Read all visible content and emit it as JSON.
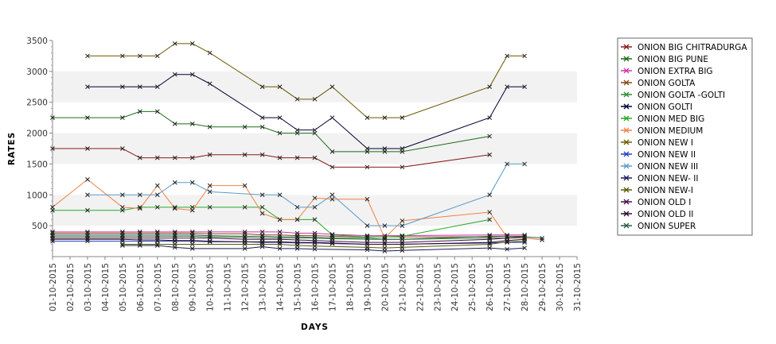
{
  "chart_data": {
    "type": "line",
    "xlabel": "DAYS",
    "ylabel": "RATES",
    "ylim": [
      0,
      3500
    ],
    "yticks": [
      500,
      1000,
      1500,
      2000,
      2500,
      3000,
      3500
    ],
    "grid": "alternating horizontal bands",
    "legend_position": "right",
    "categories": [
      "01-10-2015",
      "02-10-2015",
      "03-10-2015",
      "04-10-2015",
      "05-10-2015",
      "06-10-2015",
      "07-10-2015",
      "08-10-2015",
      "09-10-2015",
      "10-10-2015",
      "11-10-2015",
      "12-10-2015",
      "13-10-2015",
      "14-10-2015",
      "15-10-2015",
      "16-10-2015",
      "17-10-2015",
      "18-10-2015",
      "19-10-2015",
      "20-10-2015",
      "21-10-2015",
      "22-10-2015",
      "23-10-2015",
      "24-10-2015",
      "25-10-2015",
      "26-10-2015",
      "27-10-2015",
      "28-10-2015",
      "29-10-2015",
      "30-10-2015",
      "31-10-2015"
    ],
    "series": [
      {
        "name": "ONION BIG CHITRADURGA",
        "color": "#8b1a1a",
        "values": [
          1750,
          null,
          1750,
          null,
          1750,
          1600,
          1600,
          1600,
          1600,
          1650,
          null,
          1650,
          1650,
          1600,
          1600,
          1600,
          1450,
          null,
          1450,
          null,
          1450,
          null,
          null,
          null,
          null,
          1650,
          null,
          null,
          null,
          null,
          null
        ]
      },
      {
        "name": "ONION BIG PUNE",
        "color": "#1a6b1a",
        "values": [
          2250,
          null,
          2250,
          null,
          2250,
          2350,
          2350,
          2150,
          2150,
          2100,
          null,
          2100,
          2100,
          2000,
          2000,
          2000,
          1700,
          null,
          1700,
          1700,
          1700,
          null,
          null,
          null,
          null,
          1950,
          null,
          null,
          null,
          null,
          null
        ]
      },
      {
        "name": "ONION EXTRA BIG",
        "color": "#cc33aa",
        "values": [
          400,
          null,
          400,
          null,
          400,
          400,
          400,
          400,
          400,
          400,
          null,
          400,
          400,
          400,
          380,
          380,
          360,
          null,
          340,
          340,
          340,
          null,
          null,
          null,
          null,
          350,
          350,
          350,
          null,
          null,
          null
        ]
      },
      {
        "name": "ONION GOLTA",
        "color": "#8b4513",
        "values": [
          380,
          null,
          380,
          null,
          380,
          380,
          380,
          380,
          380,
          370,
          null,
          370,
          350,
          350,
          340,
          340,
          330,
          null,
          320,
          320,
          320,
          null,
          null,
          null,
          null,
          320,
          330,
          330,
          null,
          null,
          null
        ]
      },
      {
        "name": "ONION GOLTA -GOLTI",
        "color": "#2e8b2e",
        "values": [
          330,
          null,
          330,
          null,
          330,
          330,
          330,
          330,
          330,
          320,
          null,
          310,
          300,
          300,
          300,
          300,
          290,
          null,
          280,
          280,
          280,
          null,
          null,
          null,
          null,
          300,
          300,
          300,
          null,
          null,
          null
        ]
      },
      {
        "name": "ONION GOLTI",
        "color": "#000033",
        "values": [
          null,
          null,
          2750,
          null,
          2750,
          2750,
          2750,
          2950,
          2950,
          2800,
          null,
          null,
          2250,
          2250,
          2050,
          2050,
          2250,
          null,
          1750,
          1750,
          1750,
          null,
          null,
          null,
          null,
          2250,
          2750,
          2750,
          null,
          null,
          null
        ]
      },
      {
        "name": "ONION MED BIG",
        "color": "#22aa22",
        "values": [
          750,
          null,
          750,
          null,
          750,
          800,
          800,
          800,
          800,
          800,
          null,
          800,
          800,
          600,
          600,
          600,
          350,
          null,
          320,
          320,
          330,
          null,
          null,
          null,
          null,
          600,
          null,
          null,
          null,
          null,
          null
        ]
      },
      {
        "name": "ONION MEDIUM",
        "color": "#f08040",
        "values": [
          800,
          null,
          1250,
          null,
          800,
          780,
          1150,
          780,
          750,
          1150,
          null,
          1150,
          700,
          600,
          600,
          950,
          930,
          null,
          930,
          300,
          580,
          null,
          null,
          null,
          null,
          720,
          310,
          300,
          270,
          null,
          null
        ]
      },
      {
        "name": "ONION NEW I",
        "color": "#6b5a00",
        "values": [
          null,
          null,
          3250,
          null,
          3250,
          3250,
          3250,
          3450,
          3450,
          3300,
          null,
          null,
          2750,
          2750,
          2550,
          2550,
          2750,
          null,
          2250,
          2250,
          2250,
          null,
          null,
          null,
          null,
          2750,
          3250,
          3250,
          null,
          null,
          null
        ]
      },
      {
        "name": "ONION NEW II",
        "color": "#1f3fbf",
        "values": [
          250,
          null,
          250,
          null,
          250,
          250,
          250,
          250,
          250,
          240,
          null,
          240,
          230,
          230,
          220,
          220,
          210,
          null,
          200,
          200,
          200,
          null,
          null,
          null,
          null,
          220,
          230,
          230,
          null,
          null,
          null
        ]
      },
      {
        "name": "ONION NEW III",
        "color": "#5a9ac8",
        "values": [
          null,
          null,
          1000,
          null,
          1000,
          1000,
          1000,
          1200,
          1200,
          1050,
          null,
          null,
          1000,
          1000,
          800,
          800,
          1000,
          null,
          500,
          500,
          500,
          null,
          null,
          null,
          null,
          1000,
          1500,
          1500,
          null,
          null,
          null
        ]
      },
      {
        "name": "ONION NEW- II",
        "color": "#1a1a5a",
        "values": [
          null,
          null,
          null,
          null,
          180,
          180,
          180,
          150,
          130,
          null,
          null,
          130,
          160,
          130,
          130,
          120,
          null,
          null,
          110,
          90,
          100,
          null,
          null,
          null,
          null,
          140,
          120,
          140,
          null,
          null,
          null
        ]
      },
      {
        "name": "ONION NEW-I",
        "color": "#5a5a00",
        "values": [
          null,
          null,
          null,
          null,
          200,
          200,
          200,
          200,
          200,
          null,
          null,
          200,
          200,
          200,
          180,
          170,
          null,
          null,
          150,
          140,
          150,
          null,
          null,
          null,
          null,
          200,
          240,
          250,
          null,
          null,
          null
        ]
      },
      {
        "name": "ONION OLD I",
        "color": "#4a0a4a",
        "values": [
          300,
          null,
          300,
          null,
          300,
          300,
          300,
          300,
          300,
          300,
          null,
          280,
          280,
          280,
          270,
          260,
          250,
          null,
          230,
          230,
          230,
          null,
          null,
          null,
          null,
          280,
          300,
          320,
          null,
          null,
          null
        ]
      },
      {
        "name": "ONION OLD II",
        "color": "#2a0a2a",
        "values": [
          280,
          null,
          280,
          null,
          280,
          270,
          270,
          260,
          260,
          250,
          null,
          240,
          240,
          240,
          230,
          230,
          220,
          null,
          200,
          200,
          200,
          null,
          null,
          null,
          null,
          230,
          260,
          280,
          null,
          null,
          null
        ]
      },
      {
        "name": "ONION SUPER",
        "color": "#2a5a4a",
        "values": [
          350,
          null,
          350,
          null,
          350,
          350,
          350,
          350,
          350,
          340,
          null,
          330,
          330,
          320,
          320,
          310,
          300,
          null,
          300,
          280,
          280,
          null,
          null,
          null,
          null,
          330,
          330,
          320,
          300,
          null,
          null
        ]
      }
    ]
  }
}
